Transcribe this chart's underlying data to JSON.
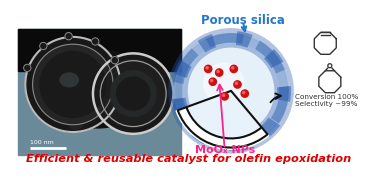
{
  "title_text": "Efficient & reusable catalyst for olefin epoxidation",
  "title_color": "#dd0000",
  "title_fontsize": 8.2,
  "porous_silica_label": "Porous silica",
  "porous_silica_color": "#2277cc",
  "moo_label": "MoOₓ NPs",
  "moo_color": "#ff2288",
  "conversion_text": "Conversion 100%\nSelectivity ~99%",
  "conversion_color": "#333333",
  "bg_color": "#ffffff",
  "tem_bg": "#5a7a8a",
  "tem_dark": "#151515",
  "shell_blue": "#2255aa",
  "sphere_light": "#c8dff0",
  "sphere_inner": "#e8f2fa",
  "red_dot": "#cc1111",
  "ring_color": "#333333"
}
